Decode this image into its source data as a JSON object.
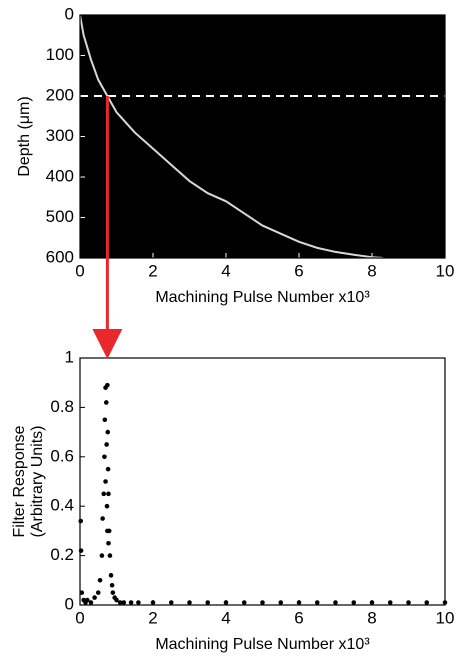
{
  "chart_data": [
    {
      "type": "line",
      "background": "#000000",
      "ylabel": "Depth (μm)",
      "xlabel": "Machining Pulse Number x10³",
      "xlim": [
        0,
        10
      ],
      "xticks": [
        0,
        2,
        4,
        6,
        8,
        10
      ],
      "ylim": [
        600,
        0
      ],
      "yticks": [
        0,
        100,
        200,
        300,
        400,
        500,
        600
      ],
      "hline": 200,
      "series": [
        {
          "color": "#d8d8d8",
          "x": [
            0,
            0.1,
            0.3,
            0.5,
            0.75,
            1,
            1.5,
            2,
            2.5,
            3,
            3.5,
            4,
            4.5,
            5,
            5.5,
            6,
            6.5,
            7,
            7.5,
            8,
            8.3
          ],
          "values": [
            0,
            50,
            110,
            160,
            200,
            240,
            290,
            330,
            370,
            410,
            440,
            460,
            490,
            520,
            540,
            560,
            575,
            585,
            592,
            598,
            600
          ]
        }
      ]
    },
    {
      "type": "scatter",
      "ylabel": [
        "Filter Response",
        "(Arbitrary Units)"
      ],
      "xlabel": "Machining Pulse Number x10³",
      "xlim": [
        0,
        10
      ],
      "xticks": [
        0,
        2,
        4,
        6,
        8,
        10
      ],
      "ylim": [
        0,
        1
      ],
      "yticks": [
        0,
        0.2,
        0.4,
        0.6,
        0.8,
        1
      ],
      "series": [
        {
          "color": "#000000",
          "x": [
            0.02,
            0.03,
            0.05,
            0.1,
            0.15,
            0.2,
            0.3,
            0.4,
            0.5,
            0.55,
            0.6,
            0.62,
            0.65,
            0.67,
            0.68,
            0.7,
            0.7,
            0.72,
            0.73,
            0.74,
            0.75,
            0.75,
            0.76,
            0.77,
            0.78,
            0.78,
            0.8,
            0.82,
            0.85,
            0.88,
            0.9,
            0.95,
            1.0,
            1.1,
            1.2,
            1.4,
            1.6,
            2,
            2.5,
            3,
            3.5,
            4,
            4.5,
            5,
            5.5,
            6,
            6.5,
            7,
            7.5,
            8,
            8.5,
            9,
            9.5,
            10
          ],
          "values": [
            0.34,
            0.22,
            0.05,
            0.02,
            0.01,
            0.02,
            0.01,
            0.03,
            0.05,
            0.1,
            0.2,
            0.35,
            0.45,
            0.6,
            0.75,
            0.88,
            0.5,
            0.82,
            0.65,
            0.4,
            0.89,
            0.3,
            0.7,
            0.55,
            0.25,
            0.45,
            0.3,
            0.2,
            0.12,
            0.08,
            0.05,
            0.03,
            0.02,
            0.01,
            0.01,
            0.01,
            0.01,
            0.01,
            0.01,
            0.01,
            0.01,
            0.01,
            0.01,
            0.01,
            0.01,
            0.01,
            0.01,
            0.01,
            0.01,
            0.01,
            0.01,
            0.01,
            0.01,
            0.01
          ]
        }
      ]
    }
  ]
}
